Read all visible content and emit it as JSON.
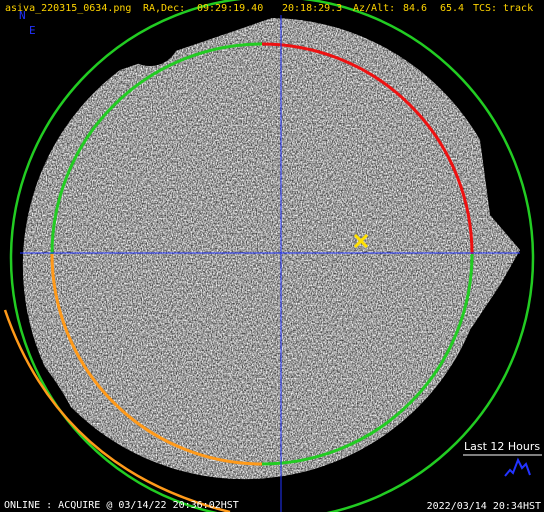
{
  "header": {
    "filename": "asiva_220315_0634.png",
    "ra_dec_label": "RA,Dec:",
    "ra": "09:29:19.40",
    "dec": "20:18:29.3",
    "az_alt_label": "Az/Alt:",
    "az": "84.6",
    "alt": "65.4",
    "tcs_label": "TCS:",
    "tcs": "track"
  },
  "compass": {
    "north": "N",
    "east": "E"
  },
  "history_link": "Last 12 Hours",
  "footer": {
    "status": "ONLINE : ACQUIRE @ 03/14/22 20:36:02HST",
    "timestamp": "2022/03/14 20:34HST"
  }
}
